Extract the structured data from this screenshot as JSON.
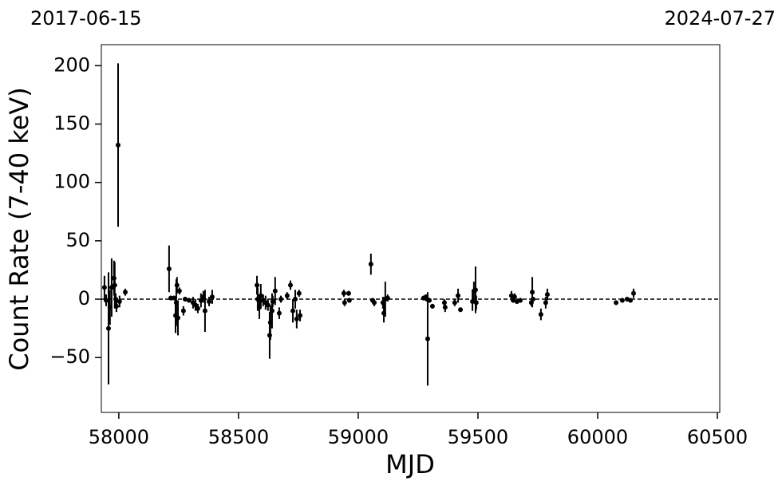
{
  "chart_data": {
    "type": "errorbar",
    "annotations": [
      "2017-06-15",
      "2024-07-27"
    ],
    "xlabel": "MJD",
    "ylabel": "Count Rate (7-40 keV)",
    "xlim": [
      57927,
      60510
    ],
    "ylim": [
      -97,
      218
    ],
    "xticks": [
      58000,
      58500,
      59000,
      59500,
      60000,
      60500
    ],
    "yticks": [
      {
        "value": -50,
        "label": "−50"
      },
      0,
      50,
      100,
      150,
      200
    ],
    "hline": 0,
    "color": "#000000",
    "x": [
      57940,
      57947,
      57957,
      57963,
      57970,
      57980,
      57983,
      57990,
      57997,
      57987,
      58003,
      58027,
      58210,
      58217,
      58230,
      58237,
      58240,
      58243,
      58247,
      58253,
      58270,
      58277,
      58293,
      58310,
      58320,
      58330,
      58343,
      58353,
      58360,
      58377,
      58390,
      58577,
      58580,
      58587,
      58593,
      58603,
      58613,
      58623,
      58630,
      58633,
      58640,
      58643,
      58653,
      58670,
      58677,
      58703,
      58717,
      58727,
      58737,
      58743,
      58753,
      58757,
      58940,
      58943,
      58960,
      58963,
      59053,
      59060,
      59067,
      59103,
      59107,
      59113,
      59123,
      59273,
      59283,
      59287,
      59290,
      59297,
      59310,
      59360,
      59363,
      59403,
      59417,
      59427,
      59477,
      59483,
      59490,
      59493,
      59640,
      59647,
      59653,
      59663,
      59677,
      59723,
      59727,
      59730,
      59763,
      59783,
      59790,
      60077,
      60103,
      60123,
      60137,
      60150
    ],
    "values": [
      10,
      -1,
      -25,
      -7,
      10,
      18,
      12,
      -6,
      132,
      0,
      -2,
      6,
      26,
      1,
      1,
      -14,
      -3,
      12,
      -16,
      7,
      -10,
      0,
      -1,
      -3,
      -5,
      -8,
      -1,
      2,
      -10,
      -2,
      2,
      12,
      0,
      -7,
      3,
      -1,
      -3,
      -5,
      -31,
      -20,
      -10,
      -2,
      7,
      -12,
      0,
      3,
      12,
      -10,
      0,
      -17,
      5,
      -14,
      5,
      -3,
      5,
      -1,
      30,
      -1,
      -3,
      -3,
      -12,
      0,
      1,
      1,
      2,
      0,
      -34,
      -1,
      -6,
      -3,
      -7,
      -3,
      3,
      -9,
      -2,
      7,
      8,
      -3,
      3,
      -1,
      2,
      -2,
      -1,
      -3,
      6,
      0,
      -13,
      -3,
      4,
      -3,
      -1,
      0,
      -1,
      5
    ],
    "errors": [
      10,
      5,
      48,
      15,
      25,
      15,
      20,
      5,
      70,
      5,
      5,
      3,
      20,
      2,
      2,
      15,
      20,
      7,
      15,
      3,
      4,
      2,
      2,
      5,
      5,
      4,
      6,
      5,
      18,
      4,
      6,
      8,
      10,
      10,
      10,
      5,
      6,
      5,
      20,
      15,
      15,
      5,
      12,
      5,
      3,
      3,
      4,
      10,
      8,
      8,
      3,
      5,
      3,
      3,
      2,
      2,
      9,
      2,
      3,
      5,
      8,
      15,
      3,
      2,
      2,
      2,
      40,
      2,
      2,
      3,
      4,
      3,
      6,
      2,
      8,
      8,
      20,
      6,
      4,
      2,
      3,
      2,
      2,
      3,
      13,
      2,
      5,
      5,
      5,
      2,
      2,
      2,
      2,
      4
    ]
  }
}
